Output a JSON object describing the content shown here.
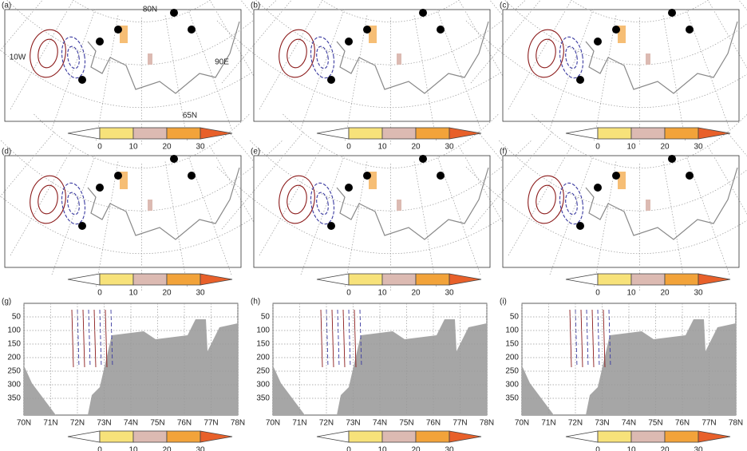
{
  "panels": [
    "(a)",
    "(b)",
    "(c)",
    "(d)",
    "(e)",
    "(f)",
    "(g)",
    "(h)",
    "(i)"
  ],
  "map_labels": {
    "lat_north": "80N",
    "lon_west": "10W",
    "lon_east": "90E",
    "lat_south": "65N"
  },
  "colorbar_ticks": [
    0,
    10,
    20,
    30
  ],
  "section_depth_ticks": [
    50,
    100,
    150,
    200,
    250,
    300,
    350
  ],
  "section_lat_ticks": [
    "70N",
    "71N",
    "72N",
    "73N",
    "74N",
    "75N",
    "76N",
    "77N",
    "78N"
  ]
}
